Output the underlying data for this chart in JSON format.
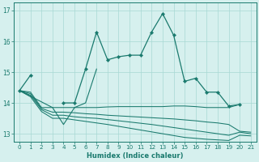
{
  "xlabel": "Humidex (Indice chaleur)",
  "x": [
    0,
    1,
    2,
    3,
    4,
    5,
    6,
    7,
    8,
    9,
    10,
    11,
    12,
    13,
    14,
    15,
    16,
    17,
    18,
    19,
    20,
    21
  ],
  "line1": [
    14.4,
    14.9,
    null,
    null,
    14.0,
    14.0,
    15.1,
    16.3,
    15.4,
    15.5,
    15.55,
    15.55,
    16.3,
    16.9,
    16.2,
    14.7,
    14.8,
    14.35,
    14.35,
    13.9,
    13.95,
    null
  ],
  "line2_x": [
    0,
    3,
    4,
    5,
    6,
    7
  ],
  "line2_y": [
    14.4,
    13.85,
    13.3,
    13.85,
    14.0,
    15.1
  ],
  "line3": [
    14.4,
    14.35,
    13.85,
    13.85,
    13.85,
    13.85,
    13.85,
    13.85,
    13.87,
    13.88,
    13.88,
    13.88,
    13.88,
    13.88,
    13.9,
    13.9,
    13.88,
    13.85,
    13.85,
    13.85,
    13.95,
    null
  ],
  "line4": [
    14.4,
    14.3,
    13.82,
    13.7,
    13.7,
    13.68,
    13.65,
    13.63,
    13.6,
    13.58,
    13.56,
    13.54,
    13.52,
    13.5,
    13.48,
    13.45,
    13.42,
    13.38,
    13.35,
    13.3,
    13.08,
    13.05
  ],
  "line5": [
    14.4,
    14.25,
    13.78,
    13.6,
    13.6,
    13.55,
    13.52,
    13.5,
    13.46,
    13.42,
    13.38,
    13.34,
    13.3,
    13.25,
    13.2,
    13.15,
    13.1,
    13.05,
    13.0,
    12.95,
    13.05,
    13.0
  ],
  "line6": [
    14.4,
    14.2,
    13.72,
    13.5,
    13.5,
    13.45,
    13.4,
    13.35,
    13.3,
    13.24,
    13.18,
    13.12,
    13.06,
    13.0,
    12.94,
    12.88,
    12.85,
    12.82,
    12.8,
    12.78,
    12.95,
    12.93
  ],
  "ylim": [
    12.75,
    17.25
  ],
  "yticks": [
    13,
    14,
    15,
    16,
    17
  ],
  "color": "#1a7a6e",
  "bg_color": "#d6f0ee",
  "grid_color": "#a8d8d4"
}
